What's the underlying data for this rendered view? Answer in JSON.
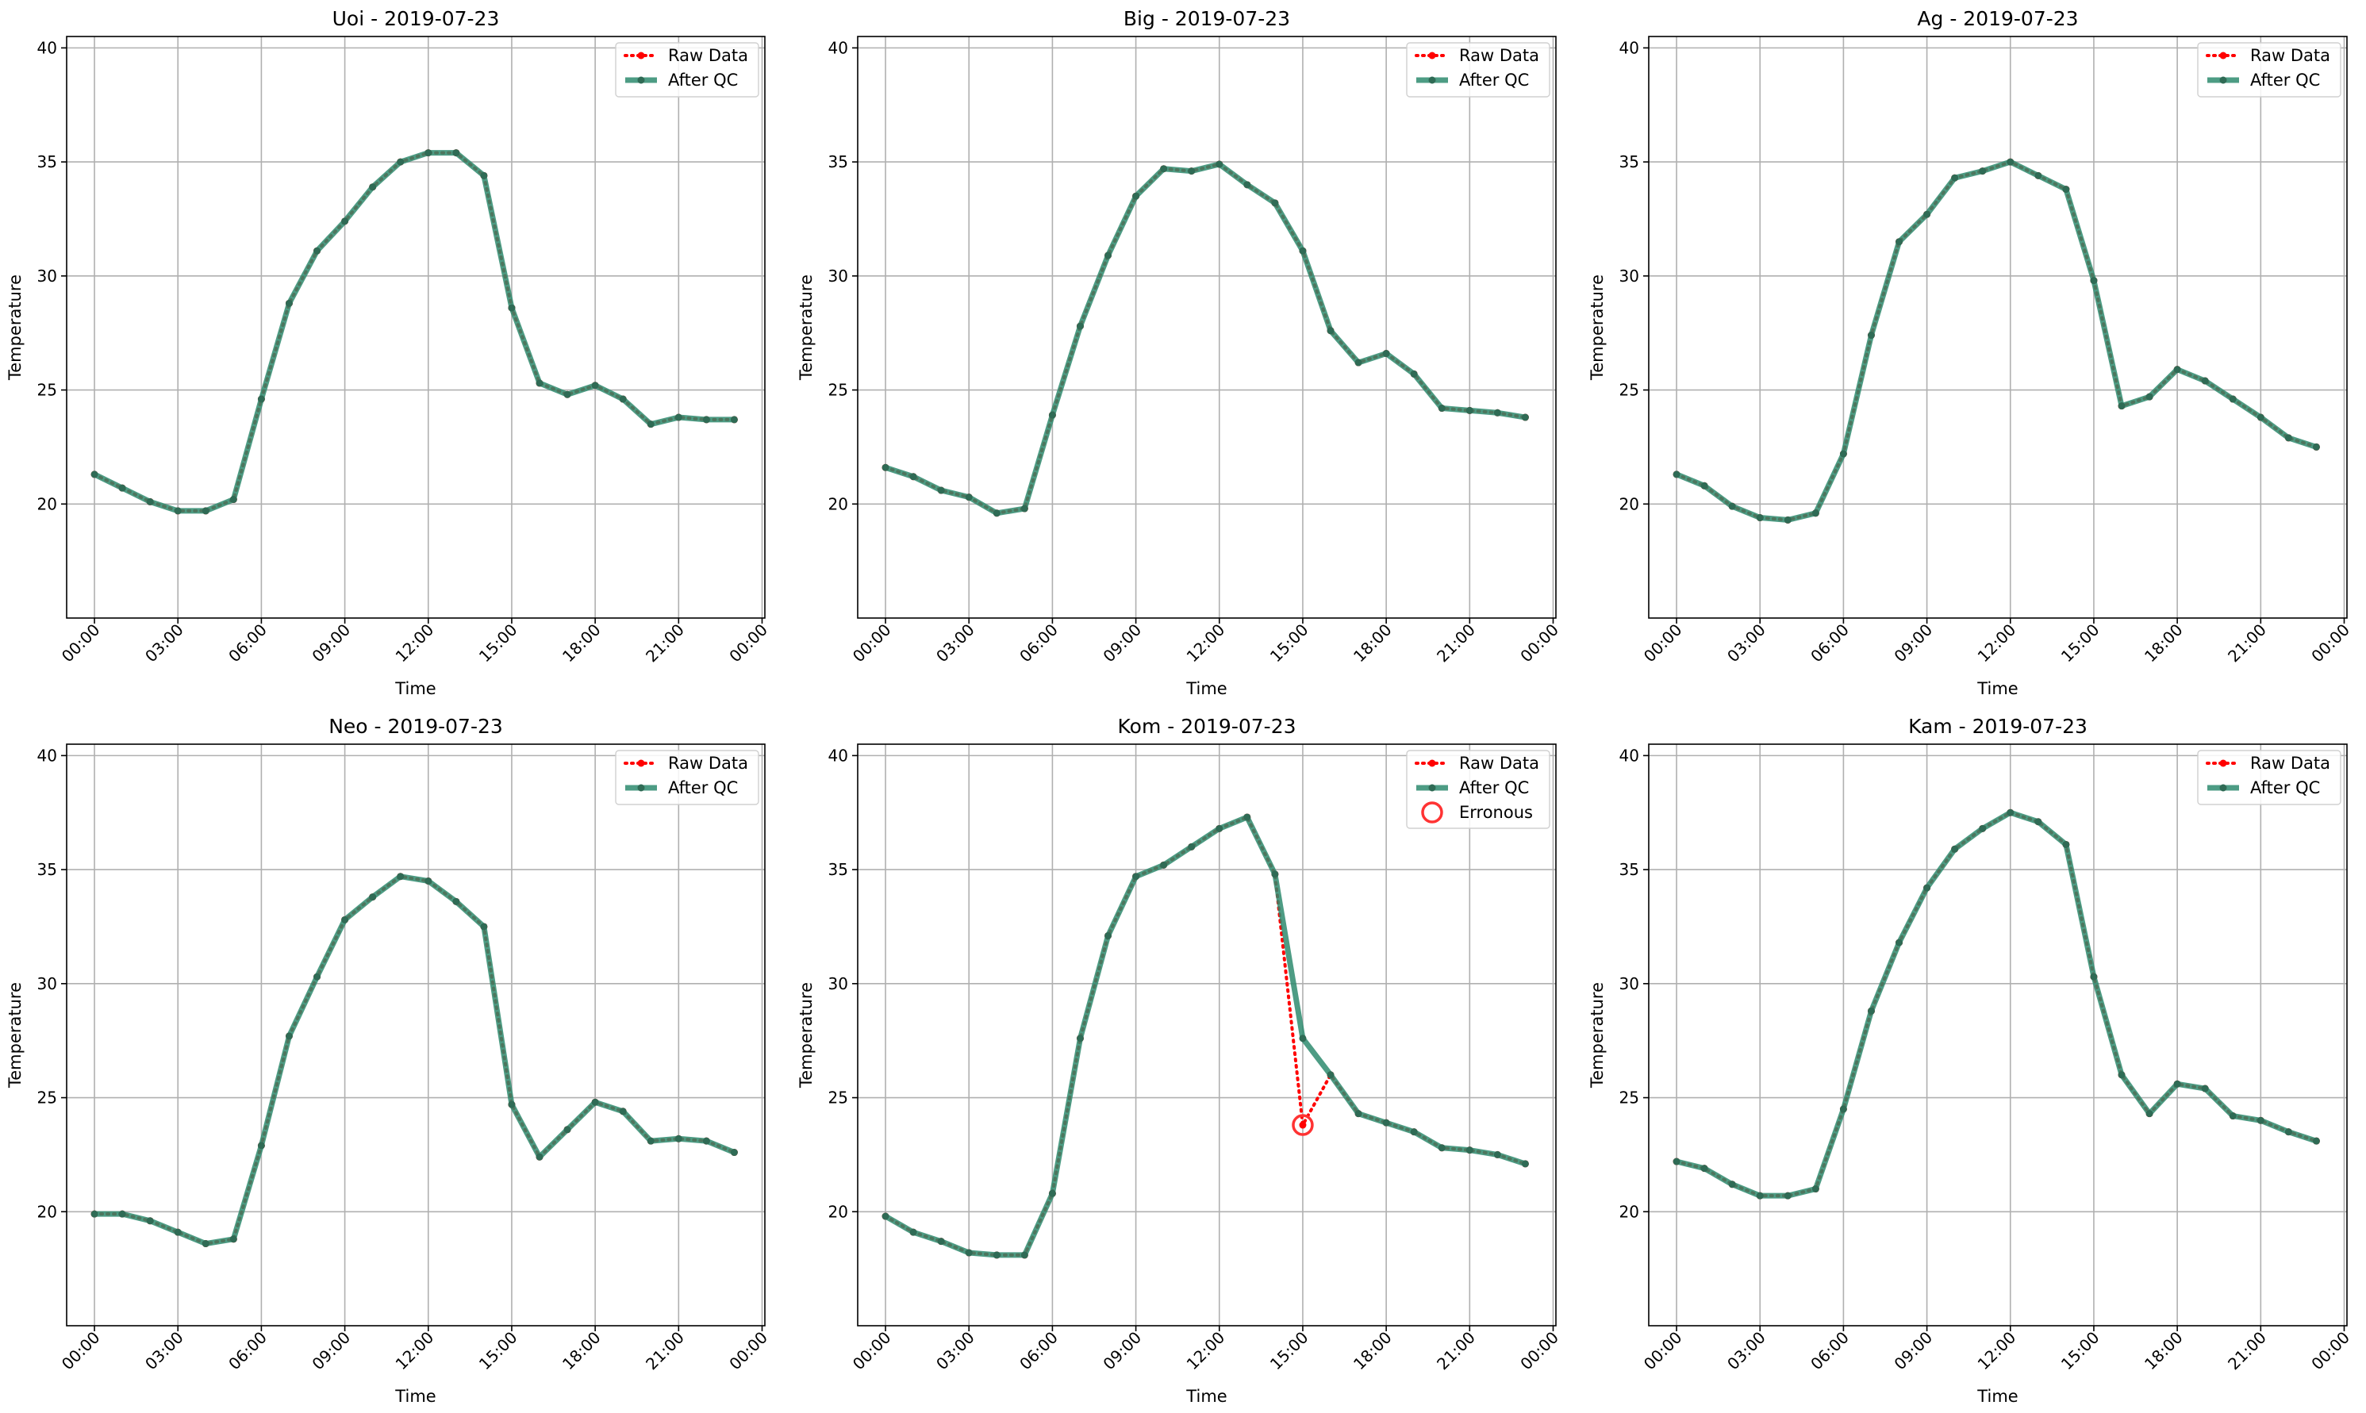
{
  "colors": {
    "raw": "#ff0000",
    "qc": "#2e8b6f",
    "qc_marker": "#2f6b55",
    "grid": "#b0b0b0",
    "erroneous": "#ff3333"
  },
  "chart_data": [
    {
      "type": "line",
      "title": "Uoi - 2019-07-23",
      "xlabel": "Time",
      "ylabel": "Temperature",
      "ylim": [
        15,
        40.5
      ],
      "yticks": [
        "20",
        "25",
        "30",
        "35",
        "40"
      ],
      "xticks": [
        "00:00",
        "03:00",
        "06:00",
        "09:00",
        "12:00",
        "15:00",
        "18:00",
        "21:00",
        "00:00"
      ],
      "grid": true,
      "legend_position": "top-right",
      "x": [
        "00:00",
        "01:00",
        "02:00",
        "03:00",
        "04:00",
        "05:00",
        "06:00",
        "07:00",
        "08:00",
        "09:00",
        "10:00",
        "11:00",
        "12:00",
        "13:00",
        "14:00",
        "15:00",
        "16:00",
        "17:00",
        "18:00",
        "19:00",
        "20:00",
        "21:00",
        "22:00",
        "23:00"
      ],
      "series": [
        {
          "name": "Raw Data",
          "values": [
            21.3,
            20.7,
            20.1,
            19.7,
            19.7,
            20.2,
            24.6,
            28.8,
            31.1,
            32.4,
            33.9,
            35.0,
            35.4,
            35.4,
            34.4,
            28.6,
            25.3,
            24.8,
            25.2,
            24.6,
            23.5,
            23.8,
            23.7,
            23.7
          ]
        },
        {
          "name": "After QC",
          "values": [
            21.3,
            20.7,
            20.1,
            19.7,
            19.7,
            20.2,
            24.6,
            28.8,
            31.1,
            32.4,
            33.9,
            35.0,
            35.4,
            35.4,
            34.4,
            28.6,
            25.3,
            24.8,
            25.2,
            24.6,
            23.5,
            23.8,
            23.7,
            23.7
          ]
        }
      ],
      "erroneous": []
    },
    {
      "type": "line",
      "title": "Big - 2019-07-23",
      "xlabel": "Time",
      "ylabel": "Temperature",
      "ylim": [
        15,
        40.5
      ],
      "yticks": [
        "20",
        "25",
        "30",
        "35",
        "40"
      ],
      "xticks": [
        "00:00",
        "03:00",
        "06:00",
        "09:00",
        "12:00",
        "15:00",
        "18:00",
        "21:00",
        "00:00"
      ],
      "grid": true,
      "legend_position": "top-right",
      "x": [
        "00:00",
        "01:00",
        "02:00",
        "03:00",
        "04:00",
        "05:00",
        "06:00",
        "07:00",
        "08:00",
        "09:00",
        "10:00",
        "11:00",
        "12:00",
        "13:00",
        "14:00",
        "15:00",
        "16:00",
        "17:00",
        "18:00",
        "19:00",
        "20:00",
        "21:00",
        "22:00",
        "23:00"
      ],
      "series": [
        {
          "name": "Raw Data",
          "values": [
            21.6,
            21.2,
            20.6,
            20.3,
            19.6,
            19.8,
            23.9,
            27.8,
            30.9,
            33.5,
            34.7,
            34.6,
            34.9,
            34.0,
            33.2,
            31.1,
            27.6,
            26.2,
            26.6,
            25.7,
            24.2,
            24.1,
            24.0,
            23.8
          ]
        },
        {
          "name": "After QC",
          "values": [
            21.6,
            21.2,
            20.6,
            20.3,
            19.6,
            19.8,
            23.9,
            27.8,
            30.9,
            33.5,
            34.7,
            34.6,
            34.9,
            34.0,
            33.2,
            31.1,
            27.6,
            26.2,
            26.6,
            25.7,
            24.2,
            24.1,
            24.0,
            23.8
          ]
        }
      ],
      "erroneous": []
    },
    {
      "type": "line",
      "title": "Ag - 2019-07-23",
      "xlabel": "Time",
      "ylabel": "Temperature",
      "ylim": [
        15,
        40.5
      ],
      "yticks": [
        "20",
        "25",
        "30",
        "35",
        "40"
      ],
      "xticks": [
        "00:00",
        "03:00",
        "06:00",
        "09:00",
        "12:00",
        "15:00",
        "18:00",
        "21:00",
        "00:00"
      ],
      "grid": true,
      "legend_position": "top-right",
      "x": [
        "00:00",
        "01:00",
        "02:00",
        "03:00",
        "04:00",
        "05:00",
        "06:00",
        "07:00",
        "08:00",
        "09:00",
        "10:00",
        "11:00",
        "12:00",
        "13:00",
        "14:00",
        "15:00",
        "16:00",
        "17:00",
        "18:00",
        "19:00",
        "20:00",
        "21:00",
        "22:00",
        "23:00"
      ],
      "series": [
        {
          "name": "Raw Data",
          "values": [
            21.3,
            20.8,
            19.9,
            19.4,
            19.3,
            19.6,
            22.2,
            27.4,
            31.5,
            32.7,
            34.3,
            34.6,
            35.0,
            34.4,
            33.8,
            29.8,
            24.3,
            24.7,
            25.9,
            25.4,
            24.6,
            23.8,
            22.9,
            22.5
          ]
        },
        {
          "name": "After QC",
          "values": [
            21.3,
            20.8,
            19.9,
            19.4,
            19.3,
            19.6,
            22.2,
            27.4,
            31.5,
            32.7,
            34.3,
            34.6,
            35.0,
            34.4,
            33.8,
            29.8,
            24.3,
            24.7,
            25.9,
            25.4,
            24.6,
            23.8,
            22.9,
            22.5
          ]
        }
      ],
      "erroneous": []
    },
    {
      "type": "line",
      "title": "Neo - 2019-07-23",
      "xlabel": "Time",
      "ylabel": "Temperature",
      "ylim": [
        15,
        40.5
      ],
      "yticks": [
        "20",
        "25",
        "30",
        "35",
        "40"
      ],
      "xticks": [
        "00:00",
        "03:00",
        "06:00",
        "09:00",
        "12:00",
        "15:00",
        "18:00",
        "21:00",
        "00:00"
      ],
      "grid": true,
      "legend_position": "top-right",
      "x": [
        "00:00",
        "01:00",
        "02:00",
        "03:00",
        "04:00",
        "05:00",
        "06:00",
        "07:00",
        "08:00",
        "09:00",
        "10:00",
        "11:00",
        "12:00",
        "13:00",
        "14:00",
        "15:00",
        "16:00",
        "17:00",
        "18:00",
        "19:00",
        "20:00",
        "21:00",
        "22:00",
        "23:00"
      ],
      "series": [
        {
          "name": "Raw Data",
          "values": [
            19.9,
            19.9,
            19.6,
            19.1,
            18.6,
            18.8,
            22.9,
            27.7,
            30.3,
            32.8,
            33.8,
            34.7,
            34.5,
            33.6,
            32.5,
            24.7,
            22.4,
            23.6,
            24.8,
            24.4,
            23.1,
            23.2,
            23.1,
            22.6
          ]
        },
        {
          "name": "After QC",
          "values": [
            19.9,
            19.9,
            19.6,
            19.1,
            18.6,
            18.8,
            22.9,
            27.7,
            30.3,
            32.8,
            33.8,
            34.7,
            34.5,
            33.6,
            32.5,
            24.7,
            22.4,
            23.6,
            24.8,
            24.4,
            23.1,
            23.2,
            23.1,
            22.6
          ]
        }
      ],
      "erroneous": []
    },
    {
      "type": "line",
      "title": "Kom - 2019-07-23",
      "xlabel": "Time",
      "ylabel": "Temperature",
      "ylim": [
        15,
        40.5
      ],
      "yticks": [
        "20",
        "25",
        "30",
        "35",
        "40"
      ],
      "xticks": [
        "00:00",
        "03:00",
        "06:00",
        "09:00",
        "12:00",
        "15:00",
        "18:00",
        "21:00",
        "00:00"
      ],
      "grid": true,
      "legend_position": "top-right",
      "x": [
        "00:00",
        "01:00",
        "02:00",
        "03:00",
        "04:00",
        "05:00",
        "06:00",
        "07:00",
        "08:00",
        "09:00",
        "10:00",
        "11:00",
        "12:00",
        "13:00",
        "14:00",
        "15:00",
        "16:00",
        "17:00",
        "18:00",
        "19:00",
        "20:00",
        "21:00",
        "22:00",
        "23:00"
      ],
      "series": [
        {
          "name": "Raw Data",
          "values": [
            19.8,
            19.1,
            18.7,
            18.2,
            18.1,
            18.1,
            20.8,
            27.6,
            32.1,
            34.7,
            35.2,
            36.0,
            36.8,
            37.3,
            34.8,
            23.8,
            26.0,
            24.3,
            23.9,
            23.5,
            22.8,
            22.7,
            22.5,
            22.1
          ]
        },
        {
          "name": "After QC",
          "values": [
            19.8,
            19.1,
            18.7,
            18.2,
            18.1,
            18.1,
            20.8,
            27.6,
            32.1,
            34.7,
            35.2,
            36.0,
            36.8,
            37.3,
            34.8,
            27.6,
            26.0,
            24.3,
            23.9,
            23.5,
            22.8,
            22.7,
            22.5,
            22.1
          ]
        }
      ],
      "erroneous": [
        {
          "name": "Erronous",
          "x": "15:00",
          "value": 23.8
        }
      ]
    },
    {
      "type": "line",
      "title": "Kam - 2019-07-23",
      "xlabel": "Time",
      "ylabel": "Temperature",
      "ylim": [
        15,
        40.5
      ],
      "yticks": [
        "20",
        "25",
        "30",
        "35",
        "40"
      ],
      "xticks": [
        "00:00",
        "03:00",
        "06:00",
        "09:00",
        "12:00",
        "15:00",
        "18:00",
        "21:00",
        "00:00"
      ],
      "grid": true,
      "legend_position": "top-right",
      "x": [
        "00:00",
        "01:00",
        "02:00",
        "03:00",
        "04:00",
        "05:00",
        "06:00",
        "07:00",
        "08:00",
        "09:00",
        "10:00",
        "11:00",
        "12:00",
        "13:00",
        "14:00",
        "15:00",
        "16:00",
        "17:00",
        "18:00",
        "19:00",
        "20:00",
        "21:00",
        "22:00",
        "23:00"
      ],
      "series": [
        {
          "name": "Raw Data",
          "values": [
            22.2,
            21.9,
            21.2,
            20.7,
            20.7,
            21.0,
            24.5,
            28.8,
            31.8,
            34.2,
            35.9,
            36.8,
            37.5,
            37.1,
            36.1,
            30.3,
            26.0,
            24.3,
            25.6,
            25.4,
            24.2,
            24.0,
            23.5,
            23.1
          ]
        },
        {
          "name": "After QC",
          "values": [
            22.2,
            21.9,
            21.2,
            20.7,
            20.7,
            21.0,
            24.5,
            28.8,
            31.8,
            34.2,
            35.9,
            36.8,
            37.5,
            37.1,
            36.1,
            30.3,
            26.0,
            24.3,
            25.6,
            25.4,
            24.2,
            24.0,
            23.5,
            23.1
          ]
        }
      ],
      "erroneous": []
    }
  ]
}
